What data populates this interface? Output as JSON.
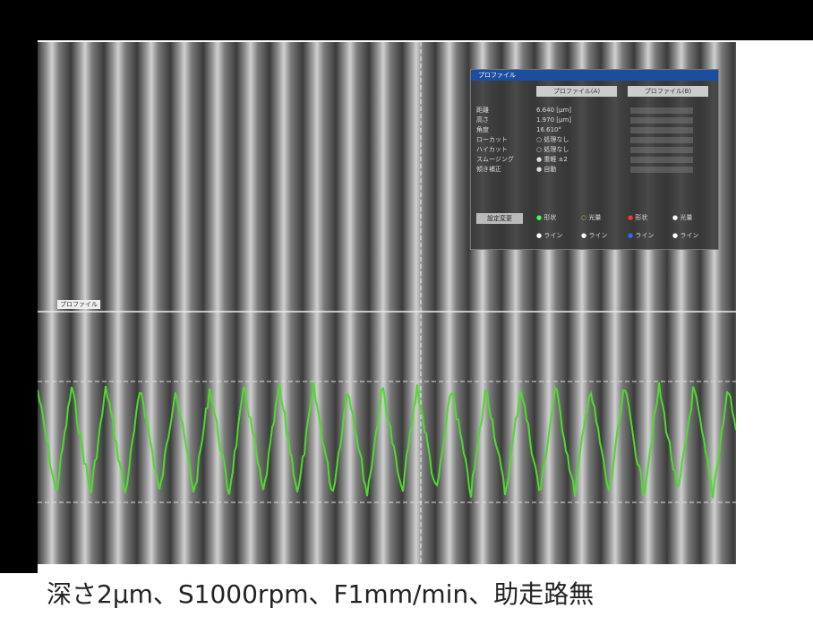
{
  "panel": {
    "title": "プロファイル",
    "tabs": [
      "プロファイル(A)",
      "プロファイル(B)"
    ],
    "rows": [
      {
        "label": "距離",
        "value": "6.640 [μm]"
      },
      {
        "label": "高さ",
        "value": "1.970 [μm]"
      },
      {
        "label": "角度",
        "value": "16.610°"
      },
      {
        "label": "ローカット",
        "value": "○ 処理なし"
      },
      {
        "label": "ハイカット",
        "value": "○ 処理なし"
      },
      {
        "label": "スムージング",
        "value": "● 重軽 ±2"
      },
      {
        "label": "傾き補正",
        "value": "● 自動"
      }
    ],
    "button": "設定変更",
    "legend": [
      "● 形状",
      "○ 光量",
      "● 形状",
      "● 光量",
      "● ライン",
      "● ライン",
      "● ライン",
      "● ライン"
    ]
  },
  "overlay_label": "プロファイル",
  "caption": "深さ2μm、S1000rpm、F1mm/min、助走路無"
}
